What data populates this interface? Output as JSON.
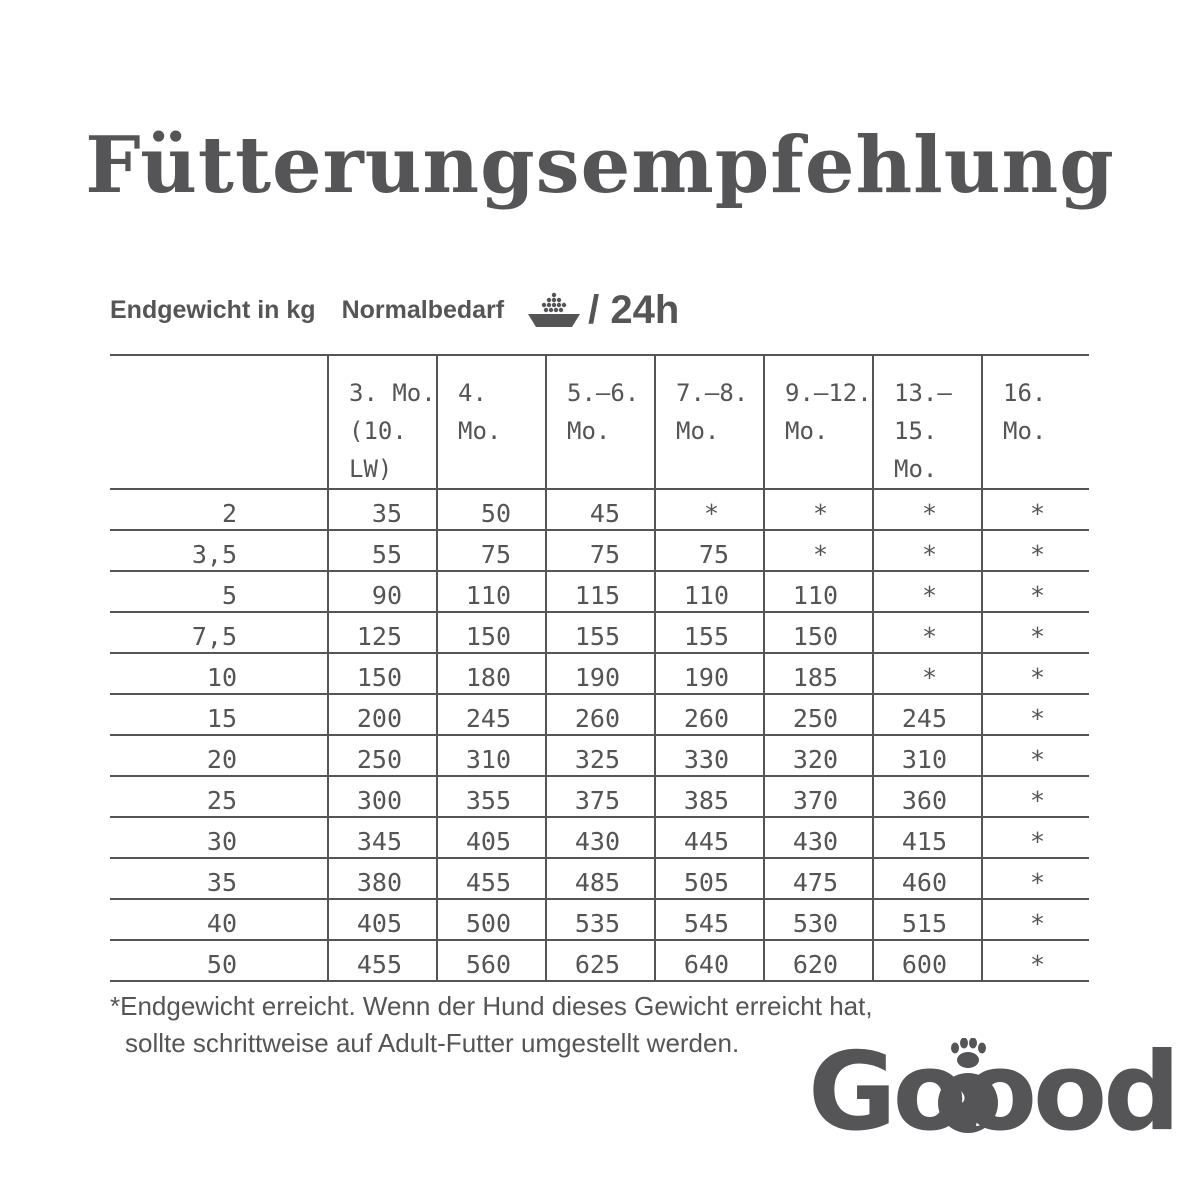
{
  "title": "Fütterungsempfehlung",
  "subheader": {
    "weight_label": "Endgewicht in kg",
    "normal_label": "Normalbedarf",
    "per_label": "/ 24h"
  },
  "table": {
    "columns": [
      {
        "line1": "3. Mo.",
        "line2": "(10. LW)"
      },
      {
        "line1": "4.",
        "line2": "Mo."
      },
      {
        "line1": "5.–6.",
        "line2": "Mo."
      },
      {
        "line1": "7.–8.",
        "line2": "Mo."
      },
      {
        "line1": "9.–12.",
        "line2": "Mo."
      },
      {
        "line1": "13.–15.",
        "line2": "Mo."
      },
      {
        "line1": "16.",
        "line2": "Mo."
      }
    ],
    "rows": [
      {
        "weight": "2",
        "values": [
          "35",
          "50",
          "45",
          "*",
          "*",
          "*",
          "*"
        ]
      },
      {
        "weight": "3,5",
        "values": [
          "55",
          "75",
          "75",
          "75",
          "*",
          "*",
          "*"
        ]
      },
      {
        "weight": "5",
        "values": [
          "90",
          "110",
          "115",
          "110",
          "110",
          "*",
          "*"
        ]
      },
      {
        "weight": "7,5",
        "values": [
          "125",
          "150",
          "155",
          "155",
          "150",
          "*",
          "*"
        ]
      },
      {
        "weight": "10",
        "values": [
          "150",
          "180",
          "190",
          "190",
          "185",
          "*",
          "*"
        ]
      },
      {
        "weight": "15",
        "values": [
          "200",
          "245",
          "260",
          "260",
          "250",
          "245",
          "*"
        ]
      },
      {
        "weight": "20",
        "values": [
          "250",
          "310",
          "325",
          "330",
          "320",
          "310",
          "*"
        ]
      },
      {
        "weight": "25",
        "values": [
          "300",
          "355",
          "375",
          "385",
          "370",
          "360",
          "*"
        ]
      },
      {
        "weight": "30",
        "values": [
          "345",
          "405",
          "430",
          "445",
          "430",
          "415",
          "*"
        ]
      },
      {
        "weight": "35",
        "values": [
          "380",
          "455",
          "485",
          "505",
          "475",
          "460",
          "*"
        ]
      },
      {
        "weight": "40",
        "values": [
          "405",
          "500",
          "535",
          "545",
          "530",
          "515",
          "*"
        ]
      },
      {
        "weight": "50",
        "values": [
          "455",
          "560",
          "625",
          "640",
          "620",
          "600",
          "*"
        ]
      }
    ]
  },
  "footnote": {
    "line1": "*Endgewicht erreicht. Wenn der Hund dieses Gewicht erreicht hat,",
    "line2": "sollte schrittweise auf Adult-Futter umgestellt werden."
  },
  "logo": {
    "text": "Goood",
    "icons": [
      "paw-icon",
      "globe-icon",
      "bowl-icon"
    ]
  },
  "colors": {
    "text": "#555557",
    "background": "#ffffff"
  }
}
